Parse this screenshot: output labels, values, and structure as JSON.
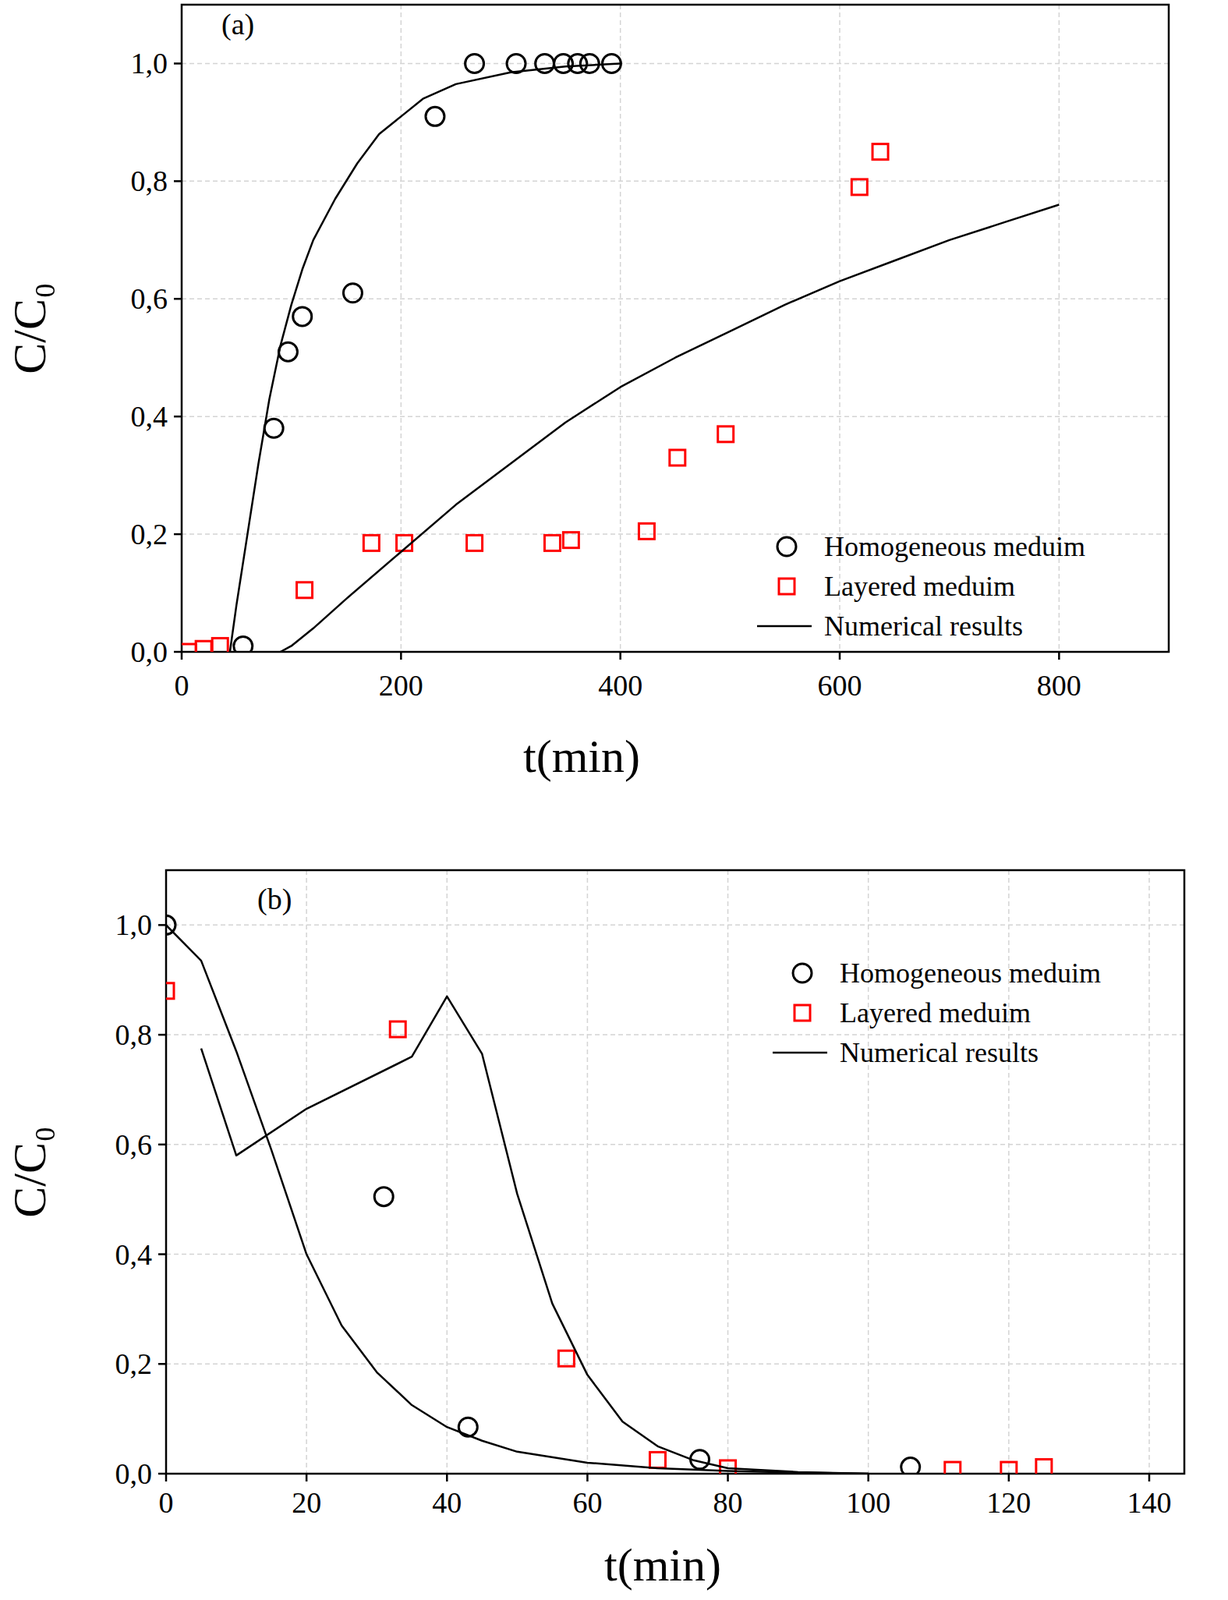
{
  "chart_data": [
    {
      "type": "scatter",
      "title": "(a)",
      "x_label": "t(min)",
      "y_label": "C/C₀",
      "xlim": [
        0,
        900
      ],
      "ylim": [
        0,
        1.1
      ],
      "xticks": [
        0,
        200,
        400,
        600,
        800
      ],
      "yticks": [
        {
          "value": 0,
          "label": "0,0"
        },
        {
          "value": 0.2,
          "label": "0,2"
        },
        {
          "value": 0.4,
          "label": "0,4"
        },
        {
          "value": 0.6,
          "label": "0,6"
        },
        {
          "value": 0.8,
          "label": "0,8"
        },
        {
          "value": 1.0,
          "label": "1,0"
        }
      ],
      "grid": true,
      "legend": "lower right",
      "series": [
        {
          "name": "Homogeneous meduim",
          "type": "scatter",
          "marker": "circle",
          "color": "#000000",
          "x": [
            56,
            84,
            97,
            110,
            156,
            231,
            267,
            305,
            331,
            348,
            361,
            372,
            392
          ],
          "values": [
            0.01,
            0.38,
            0.51,
            0.57,
            0.61,
            0.91,
            1.0,
            1.0,
            1.0,
            1.0,
            1.0,
            1.0,
            1.0
          ]
        },
        {
          "name": "Layered meduim",
          "type": "scatter",
          "marker": "square",
          "color": "#ff0000",
          "x": [
            6,
            20,
            35,
            112,
            173,
            203,
            267,
            338,
            355,
            424,
            452,
            496,
            618,
            637
          ],
          "values": [
            0.0,
            0.005,
            0.01,
            0.105,
            0.185,
            0.185,
            0.185,
            0.185,
            0.19,
            0.205,
            0.33,
            0.37,
            0.79,
            0.85
          ]
        },
        {
          "name": "Numerical results",
          "type": "line",
          "line_style": "solid",
          "color": "#000000",
          "x": [
            44,
            50,
            60,
            70,
            80,
            90,
            100,
            110,
            120,
            140,
            160,
            180,
            200,
            220,
            250,
            300,
            350,
            400
          ],
          "values": [
            0.0,
            0.08,
            0.2,
            0.32,
            0.43,
            0.52,
            0.59,
            0.65,
            0.7,
            0.77,
            0.83,
            0.88,
            0.91,
            0.94,
            0.965,
            0.985,
            0.995,
            1.0
          ]
        },
        {
          "name": "Numerical results",
          "type": "line",
          "line_style": "solid",
          "color": "#000000",
          "x": [
            90,
            100,
            120,
            150,
            200,
            250,
            300,
            350,
            400,
            450,
            500,
            550,
            600,
            650,
            700,
            750,
            800
          ],
          "values": [
            0.0,
            0.01,
            0.04,
            0.09,
            0.17,
            0.25,
            0.32,
            0.39,
            0.45,
            0.5,
            0.545,
            0.59,
            0.63,
            0.665,
            0.7,
            0.73,
            0.76
          ]
        }
      ]
    },
    {
      "type": "scatter",
      "title": "(b)",
      "x_label": "t(min)",
      "y_label": "C/C₀",
      "xlim": [
        0,
        145
      ],
      "ylim": [
        0,
        1.1
      ],
      "xticks": [
        0,
        20,
        40,
        60,
        80,
        100,
        120,
        140
      ],
      "yticks": [
        {
          "value": 0,
          "label": "0,0"
        },
        {
          "value": 0.2,
          "label": "0,2"
        },
        {
          "value": 0.4,
          "label": "0,4"
        },
        {
          "value": 0.6,
          "label": "0,6"
        },
        {
          "value": 0.8,
          "label": "0,8"
        },
        {
          "value": 1.0,
          "label": "1,0"
        }
      ],
      "grid": true,
      "legend": "upper right",
      "series": [
        {
          "name": "Homogeneous meduim",
          "type": "scatter",
          "marker": "circle",
          "color": "#000000",
          "x": [
            0,
            31,
            43,
            76,
            106
          ],
          "values": [
            1.0,
            0.505,
            0.085,
            0.026,
            0.012
          ]
        },
        {
          "name": "Layered meduim",
          "type": "scatter",
          "marker": "square",
          "color": "#ff0000",
          "x": [
            0,
            33,
            57,
            70,
            80,
            112,
            120,
            125
          ],
          "values": [
            0.88,
            0.81,
            0.21,
            0.025,
            0.01,
            0.007,
            0.007,
            0.012
          ]
        },
        {
          "name": "Numerical results",
          "type": "line",
          "line_style": "solid",
          "color": "#000000",
          "x": [
            0,
            5,
            10,
            15,
            20,
            25,
            30,
            35,
            40,
            45,
            50,
            60,
            70,
            80,
            90,
            100
          ],
          "values": [
            1.0,
            0.935,
            0.77,
            0.59,
            0.4,
            0.27,
            0.185,
            0.125,
            0.085,
            0.06,
            0.04,
            0.02,
            0.01,
            0.005,
            0.002,
            0.0
          ]
        },
        {
          "name": "Numerical results",
          "type": "line",
          "line_style": "solid",
          "color": "#000000",
          "x": [
            5,
            10,
            20,
            35,
            40,
            45,
            50,
            55,
            60,
            65,
            70,
            75,
            80,
            90,
            100
          ],
          "values": [
            0.775,
            0.58,
            0.665,
            0.76,
            0.87,
            0.765,
            0.51,
            0.31,
            0.18,
            0.095,
            0.05,
            0.025,
            0.01,
            0.003,
            0.0
          ]
        }
      ]
    }
  ]
}
